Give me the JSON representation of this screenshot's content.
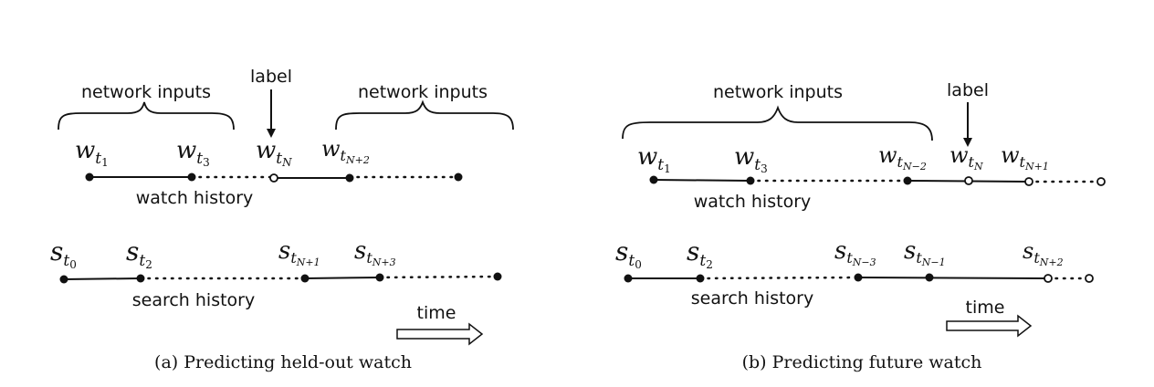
{
  "panel_a": {
    "caption": "(a) Predicting held-out watch",
    "brace_left_label": "network inputs",
    "brace_right_label": "network inputs",
    "arrow_label": "label",
    "watch_history_label": "watch history",
    "search_history_label": "search history",
    "time_label": "time",
    "watch_nodes": [
      {
        "base": "w",
        "sub": "t",
        "subsub": "1"
      },
      {
        "base": "w",
        "sub": "t",
        "subsub": "3"
      },
      {
        "base": "w",
        "sub": "t",
        "subsub": "N"
      },
      {
        "base": "w",
        "sub": "t",
        "subsub": "N+2"
      }
    ],
    "search_nodes": [
      {
        "base": "s",
        "sub": "t",
        "subsub": "0"
      },
      {
        "base": "s",
        "sub": "t",
        "subsub": "2"
      },
      {
        "base": "s",
        "sub": "t",
        "subsub": "N+1"
      },
      {
        "base": "s",
        "sub": "t",
        "subsub": "N+3"
      }
    ]
  },
  "panel_b": {
    "caption": "(b) Predicting future watch",
    "brace_label": "network inputs",
    "arrow_label": "label",
    "watch_history_label": "watch history",
    "search_history_label": "search history",
    "time_label": "time",
    "watch_nodes": [
      {
        "base": "w",
        "sub": "t",
        "subsub": "1"
      },
      {
        "base": "w",
        "sub": "t",
        "subsub": "3"
      },
      {
        "base": "w",
        "sub": "t",
        "subsub": "N−2"
      },
      {
        "base": "w",
        "sub": "t",
        "subsub": "N"
      },
      {
        "base": "w",
        "sub": "t",
        "subsub": "N+1"
      }
    ],
    "search_nodes": [
      {
        "base": "s",
        "sub": "t",
        "subsub": "0"
      },
      {
        "base": "s",
        "sub": "t",
        "subsub": "2"
      },
      {
        "base": "s",
        "sub": "t",
        "subsub": "N−3"
      },
      {
        "base": "s",
        "sub": "t",
        "subsub": "N−1"
      },
      {
        "base": "s",
        "sub": "t",
        "subsub": "N+2"
      }
    ]
  }
}
